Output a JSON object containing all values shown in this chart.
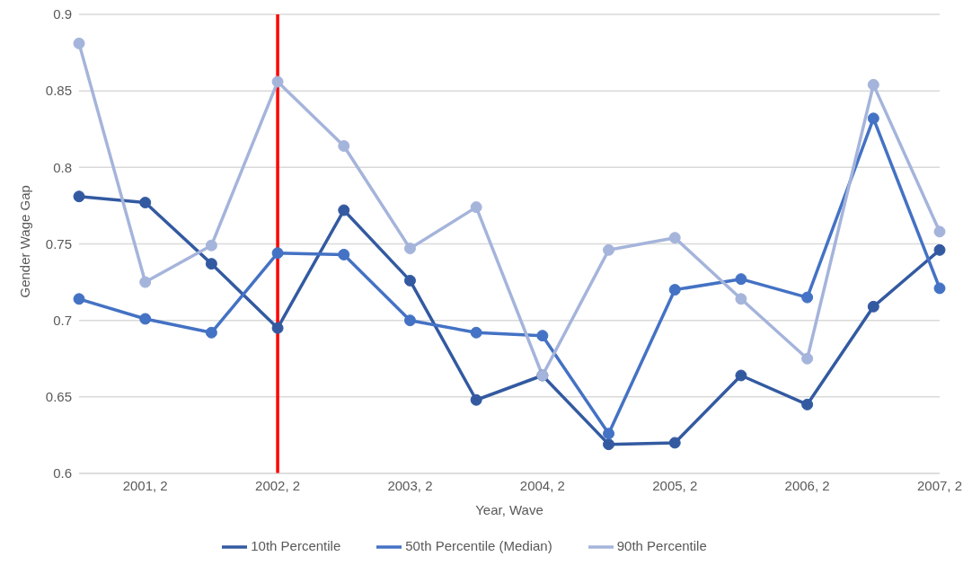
{
  "chart_data": {
    "type": "line",
    "xlabel": "Year, Wave",
    "ylabel": "Gender Wage Gap",
    "categories": [
      null,
      "2001, 2",
      null,
      "2002, 2",
      null,
      "2003, 2",
      null,
      "2004, 2",
      null,
      "2005, 2",
      null,
      "2006, 2",
      null,
      "2007, 2"
    ],
    "series": [
      {
        "name": "10th Percentile",
        "color": "#335aa1",
        "values": [
          0.781,
          0.777,
          0.737,
          0.695,
          0.772,
          0.726,
          0.648,
          0.664,
          0.619,
          0.62,
          0.664,
          0.645,
          0.709,
          0.746
        ]
      },
      {
        "name": "50th Percentile (Median)",
        "color": "#4472c4",
        "values": [
          0.714,
          0.701,
          0.692,
          0.744,
          0.743,
          0.7,
          0.692,
          0.69,
          0.626,
          0.72,
          0.727,
          0.715,
          0.832,
          0.721
        ]
      },
      {
        "name": "90th Percentile",
        "color": "#a5b4db",
        "values": [
          0.881,
          0.725,
          0.749,
          0.856,
          0.814,
          0.747,
          0.774,
          0.664,
          0.746,
          0.754,
          0.714,
          0.675,
          0.854,
          0.758
        ]
      }
    ],
    "ylim": [
      0.6,
      0.9
    ],
    "yticks": [
      0.6,
      0.65,
      0.7,
      0.75,
      0.8,
      0.85,
      0.9
    ],
    "ref_lines": [
      {
        "axis": "x",
        "value": "2002, 2",
        "color": "#ff0000"
      }
    ],
    "grid": "y",
    "legend": "bottom",
    "marker": "circle",
    "line_style": "solid"
  }
}
